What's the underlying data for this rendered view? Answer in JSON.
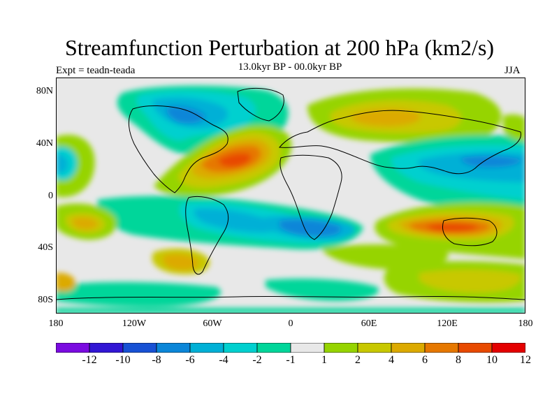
{
  "title": "Streamfunction Perturbation at 200 hPa (km2/s)",
  "subtitle_left": "Expt = teadn-teada",
  "subtitle_center": "13.0kyr BP - 00.0kyr BP",
  "subtitle_right": "JJA",
  "y_ticks": [
    "80N",
    "40N",
    "0",
    "40S",
    "80S"
  ],
  "x_ticks": [
    "180",
    "120W",
    "60W",
    "0",
    "60E",
    "120E",
    "180"
  ],
  "colorbar": {
    "labels": [
      "-12",
      "-10",
      "-8",
      "-6",
      "-4",
      "-2",
      "-1",
      "1",
      "2",
      "4",
      "6",
      "8",
      "10",
      "12"
    ],
    "colors": [
      "#7a0be0",
      "#3216d4",
      "#1851d4",
      "#0b86d8",
      "#00b0d6",
      "#00d0cf",
      "#00d69a",
      "#e8e8e8",
      "#96d400",
      "#c8c800",
      "#dcaa00",
      "#e67800",
      "#e84a00",
      "#e40000"
    ]
  }
}
